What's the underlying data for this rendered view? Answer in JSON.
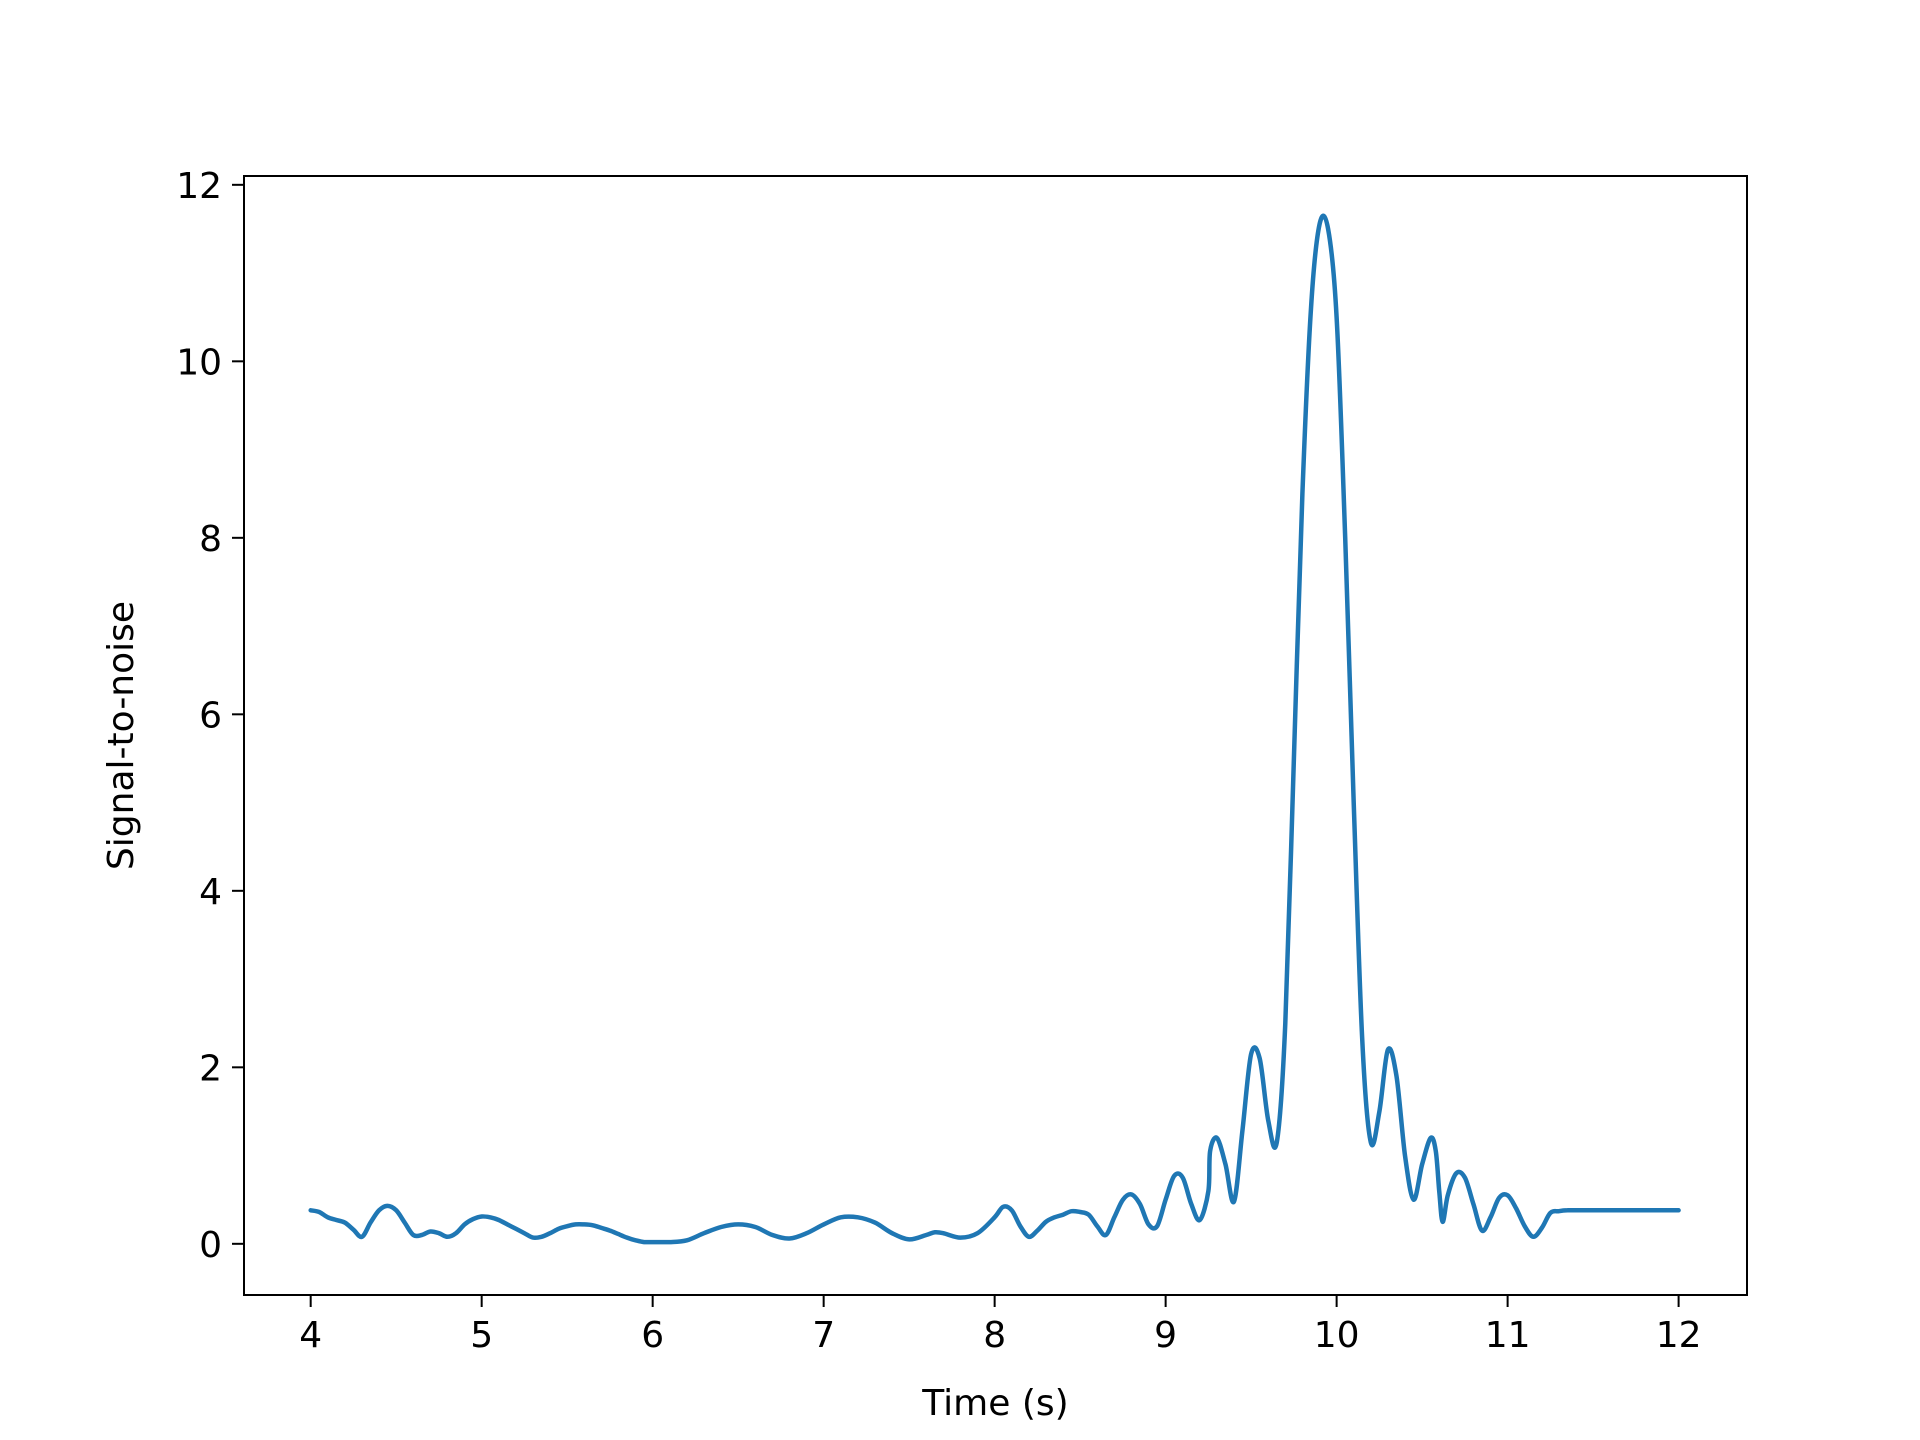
{
  "chart_data": {
    "type": "line",
    "title": "",
    "xlabel": "Time (s)",
    "ylabel": "Signal-to-noise",
    "xlim": [
      3.61,
      12.4
    ],
    "ylim": [
      -0.58,
      12.1
    ],
    "xticks": [
      4,
      5,
      6,
      7,
      8,
      9,
      10,
      11,
      12
    ],
    "yticks": [
      0,
      2,
      4,
      6,
      8,
      10,
      12
    ],
    "grid": false,
    "legend": "none",
    "series": [
      {
        "color": "#1f77b4",
        "x": [
          4.0,
          4.05,
          4.1,
          4.15,
          4.2,
          4.25,
          4.3,
          4.35,
          4.4,
          4.45,
          4.5,
          4.55,
          4.6,
          4.65,
          4.7,
          4.75,
          4.8,
          4.85,
          4.9,
          4.95,
          5.0,
          5.05,
          5.1,
          5.15,
          5.2,
          5.25,
          5.3,
          5.35,
          5.4,
          5.45,
          5.5,
          5.55,
          5.6,
          5.65,
          5.7,
          5.75,
          5.8,
          5.85,
          5.9,
          5.95,
          6.0,
          6.1,
          6.2,
          6.3,
          6.4,
          6.5,
          6.6,
          6.7,
          6.8,
          6.9,
          7.0,
          7.1,
          7.2,
          7.3,
          7.4,
          7.5,
          7.6,
          7.65,
          7.7,
          7.8,
          7.9,
          8.0,
          8.05,
          8.1,
          8.15,
          8.2,
          8.25,
          8.3,
          8.35,
          8.4,
          8.45,
          8.5,
          8.55,
          8.6,
          8.65,
          8.7,
          8.75,
          8.8,
          8.85,
          8.9,
          8.95,
          9.0,
          9.05,
          9.1,
          9.15,
          9.2,
          9.25,
          9.26,
          9.3,
          9.35,
          9.4,
          9.45,
          9.5,
          9.55,
          9.6,
          9.65,
          9.7,
          9.75,
          9.8,
          9.85,
          9.9,
          9.95,
          10.0,
          10.05,
          10.1,
          10.15,
          10.2,
          10.25,
          10.3,
          10.35,
          10.4,
          10.45,
          10.5,
          10.55,
          10.58,
          10.6,
          10.62,
          10.65,
          10.7,
          10.75,
          10.8,
          10.85,
          10.9,
          10.95,
          11.0,
          11.05,
          11.1,
          11.15,
          11.2,
          11.25,
          11.3,
          11.35,
          11.4,
          11.45,
          11.5,
          11.55,
          11.6,
          11.65,
          11.7,
          11.75,
          11.8,
          11.85,
          11.9,
          11.95,
          12.0
        ],
        "y": [
          0.38,
          0.36,
          0.3,
          0.27,
          0.24,
          0.16,
          0.08,
          0.24,
          0.38,
          0.43,
          0.38,
          0.24,
          0.1,
          0.1,
          0.14,
          0.12,
          0.08,
          0.12,
          0.22,
          0.28,
          0.31,
          0.3,
          0.27,
          0.22,
          0.17,
          0.12,
          0.07,
          0.08,
          0.12,
          0.17,
          0.2,
          0.22,
          0.22,
          0.21,
          0.18,
          0.15,
          0.11,
          0.07,
          0.04,
          0.02,
          0.02,
          0.02,
          0.04,
          0.12,
          0.19,
          0.22,
          0.19,
          0.1,
          0.06,
          0.12,
          0.22,
          0.3,
          0.3,
          0.24,
          0.12,
          0.05,
          0.1,
          0.13,
          0.12,
          0.07,
          0.12,
          0.3,
          0.42,
          0.38,
          0.2,
          0.08,
          0.15,
          0.25,
          0.3,
          0.33,
          0.37,
          0.36,
          0.33,
          0.2,
          0.1,
          0.3,
          0.5,
          0.56,
          0.45,
          0.22,
          0.2,
          0.5,
          0.77,
          0.75,
          0.45,
          0.27,
          0.6,
          1.05,
          1.2,
          0.9,
          0.48,
          1.3,
          2.15,
          2.1,
          1.4,
          1.15,
          2.5,
          5.5,
          8.5,
          10.6,
          11.55,
          11.5,
          10.5,
          8.0,
          5.0,
          2.3,
          1.15,
          1.5,
          2.2,
          1.9,
          1.0,
          0.5,
          0.9,
          1.2,
          1.05,
          0.6,
          0.25,
          0.55,
          0.8,
          0.75,
          0.45,
          0.15,
          0.3,
          0.52,
          0.55,
          0.4,
          0.2,
          0.08,
          0.18,
          0.35,
          0.37,
          0.38,
          0.38,
          0.38,
          0.38,
          0.38,
          0.38,
          0.38,
          0.38,
          0.38,
          0.38,
          0.38,
          0.38,
          0.38,
          0.38
        ]
      }
    ]
  }
}
